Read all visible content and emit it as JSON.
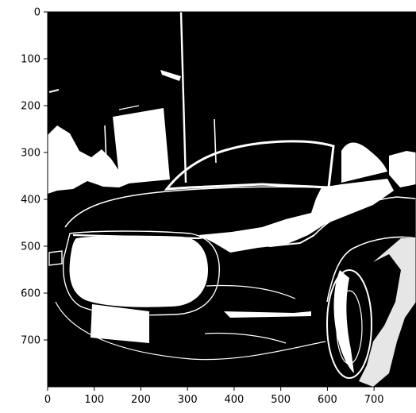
{
  "figure": {
    "type": "image-plot",
    "description_visible": "binary edge-detection image",
    "x_ticks": [
      {
        "value": 0,
        "label": "0"
      },
      {
        "value": 100,
        "label": "100"
      },
      {
        "value": 200,
        "label": "200"
      },
      {
        "value": 300,
        "label": "300"
      },
      {
        "value": 400,
        "label": "400"
      },
      {
        "value": 500,
        "label": "500"
      },
      {
        "value": 600,
        "label": "600"
      },
      {
        "value": 700,
        "label": "700"
      }
    ],
    "y_ticks": [
      {
        "value": 0,
        "label": "0"
      },
      {
        "value": 100,
        "label": "100"
      },
      {
        "value": 200,
        "label": "200"
      },
      {
        "value": 300,
        "label": "300"
      },
      {
        "value": 400,
        "label": "400"
      },
      {
        "value": 500,
        "label": "500"
      },
      {
        "value": 600,
        "label": "600"
      },
      {
        "value": 700,
        "label": "700"
      }
    ],
    "x_range": [
      0,
      790
    ],
    "y_range": [
      0,
      800
    ],
    "colors": {
      "background": "#000000",
      "foreground": "#ffffff",
      "axis": "#000000"
    }
  }
}
